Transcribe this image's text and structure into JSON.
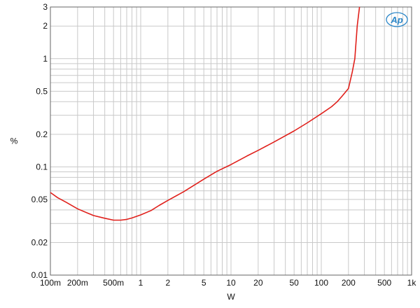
{
  "chart_data": {
    "type": "line",
    "title": "",
    "xlabel": "W",
    "ylabel": "%",
    "x_scale": "log",
    "y_scale": "log",
    "xlim": [
      0.1,
      1000
    ],
    "ylim": [
      0.01,
      3
    ],
    "grid": true,
    "x_ticks": [
      {
        "value": 0.1,
        "label": "100m"
      },
      {
        "value": 0.2,
        "label": "200m"
      },
      {
        "value": 0.5,
        "label": "500m"
      },
      {
        "value": 1,
        "label": "1"
      },
      {
        "value": 2,
        "label": "2"
      },
      {
        "value": 5,
        "label": "5"
      },
      {
        "value": 10,
        "label": "10"
      },
      {
        "value": 20,
        "label": "20"
      },
      {
        "value": 50,
        "label": "50"
      },
      {
        "value": 100,
        "label": "100"
      },
      {
        "value": 200,
        "label": "200"
      },
      {
        "value": 500,
        "label": "500"
      },
      {
        "value": 1000,
        "label": "1k"
      }
    ],
    "y_ticks": [
      {
        "value": 0.01,
        "label": "0.01"
      },
      {
        "value": 0.02,
        "label": "0.02"
      },
      {
        "value": 0.05,
        "label": "0.05"
      },
      {
        "value": 0.1,
        "label": "0.1"
      },
      {
        "value": 0.2,
        "label": "0.2"
      },
      {
        "value": 0.5,
        "label": "0.5"
      },
      {
        "value": 1,
        "label": "1"
      },
      {
        "value": 2,
        "label": "2"
      },
      {
        "value": 3,
        "label": "3"
      }
    ],
    "series": [
      {
        "color": "#e0201b",
        "x": [
          0.1,
          0.12,
          0.15,
          0.2,
          0.3,
          0.4,
          0.5,
          0.6,
          0.7,
          0.8,
          1,
          1.3,
          1.6,
          2,
          3,
          5,
          7,
          10,
          15,
          20,
          30,
          50,
          70,
          100,
          130,
          150,
          170,
          200,
          220,
          235,
          250,
          265
        ],
        "y": [
          0.058,
          0.052,
          0.047,
          0.041,
          0.0355,
          0.0335,
          0.0322,
          0.0322,
          0.0327,
          0.0337,
          0.036,
          0.0395,
          0.044,
          0.049,
          0.059,
          0.077,
          0.091,
          0.105,
          0.126,
          0.142,
          0.17,
          0.215,
          0.255,
          0.31,
          0.36,
          0.4,
          0.45,
          0.53,
          0.75,
          1.0,
          2.0,
          3.0
        ]
      }
    ]
  },
  "logo": {
    "text": "Ap",
    "color": "#2a86c8"
  }
}
